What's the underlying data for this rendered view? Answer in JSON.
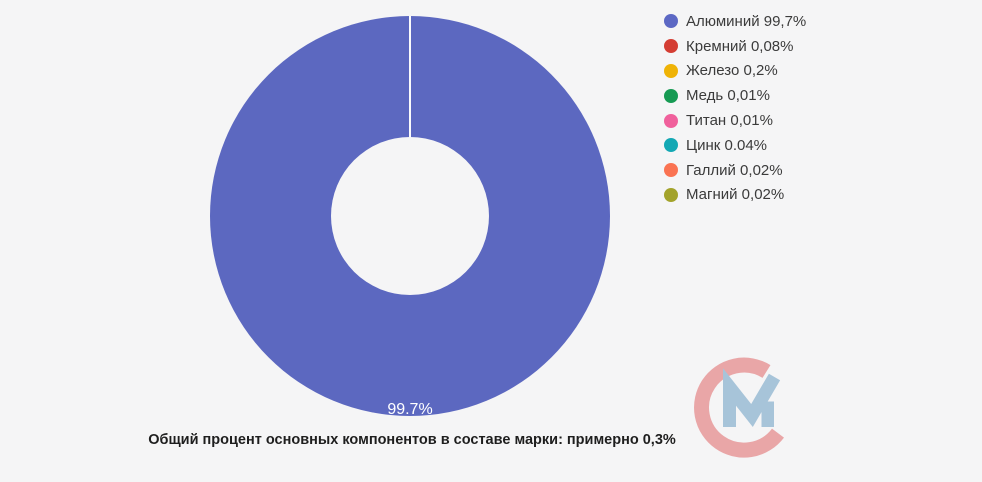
{
  "page": {
    "background": "#f5f5f6"
  },
  "chart_data": {
    "type": "pie",
    "subtype": "doughnut",
    "title": "",
    "categories": [
      "Алюминий",
      "Кремний",
      "Железо",
      "Медь",
      "Титан",
      "Цинк",
      "Галлий",
      "Магний"
    ],
    "values": [
      99.7,
      0.08,
      0.2,
      0.01,
      0.01,
      0.04,
      0.02,
      0.02
    ],
    "main_slice_color": "#5c68c0",
    "slice_separator_color": "#fbfbfc",
    "hole_color": "#f5f5f6",
    "data_label": {
      "text": "99.7%",
      "color": "#ffffff"
    },
    "legend_position": "right",
    "legend": {
      "items": [
        {
          "label": "Алюминий 99,7%",
          "color": "#5c68c4"
        },
        {
          "label": "Кремний 0,08%",
          "color": "#d43d33"
        },
        {
          "label": "Железо 0,2%",
          "color": "#efb306"
        },
        {
          "label": "Медь 0,01%",
          "color": "#169a53"
        },
        {
          "label": "Титан 0,01%",
          "color": "#f0609c"
        },
        {
          "label": "Цинк 0.04%",
          "color": "#13a8b4"
        },
        {
          "label": "Галлий 0,02%",
          "color": "#fa7352"
        },
        {
          "label": "Магний 0,02%",
          "color": "#a3a32b"
        }
      ]
    },
    "caption": "Общий процент основных компонентов в составе марки: примерно 0,3%"
  },
  "logo": {
    "letters": "СМ",
    "c_color": "#e9a6a7",
    "m_color": "#a7c4d9"
  }
}
